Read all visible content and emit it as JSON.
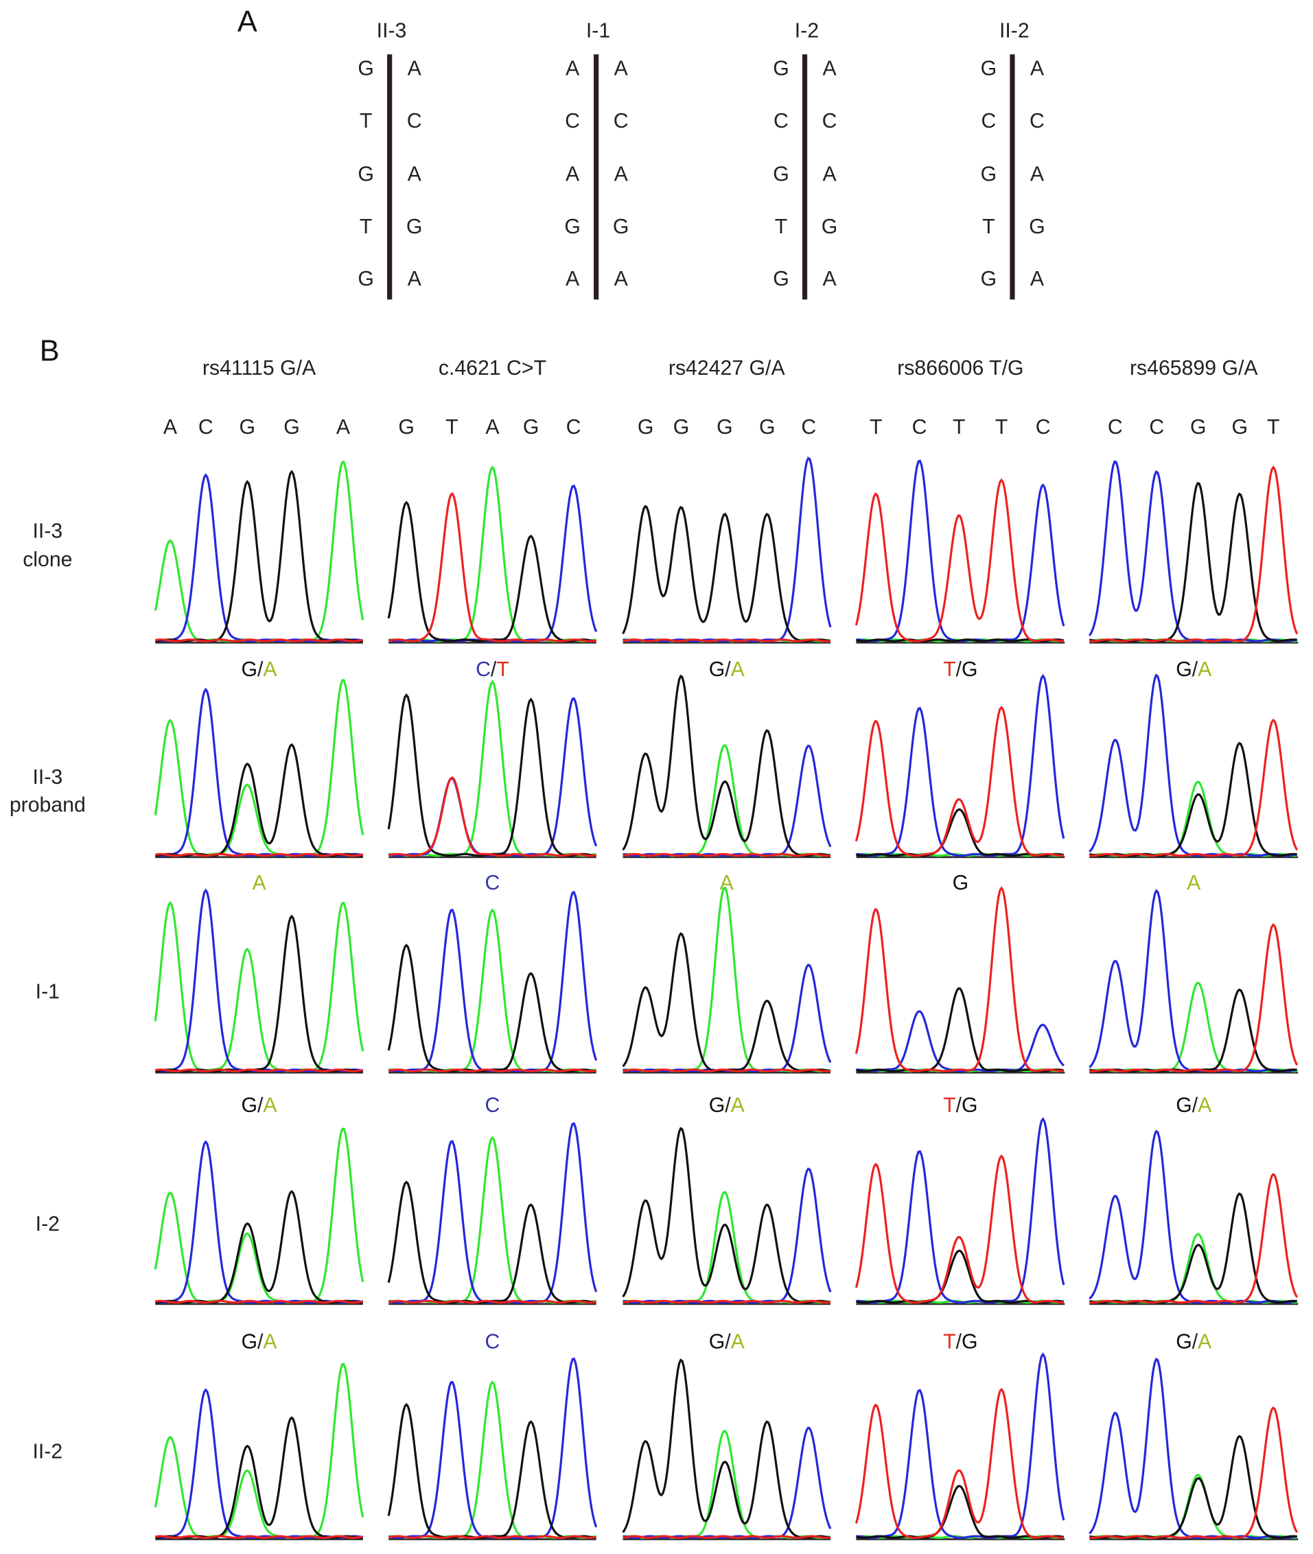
{
  "colors": {
    "A_trace": "#2ee82e",
    "A_text": "#9abb1e",
    "C": "#2626dd",
    "C_text": "#3434aa",
    "G": "#111111",
    "T": "#ee2020",
    "T_text": "#e03020",
    "mut_A": "#e0632a"
  },
  "section_a": {
    "label": "A",
    "individuals": [
      {
        "name": "II-3",
        "left": [
          "G",
          "T",
          "G",
          "T",
          "G"
        ],
        "right": [
          "A",
          "C",
          "A",
          "G",
          "A"
        ],
        "highlight_left": [
          1
        ]
      },
      {
        "name": "I-1",
        "left": [
          "A",
          "C",
          "A",
          "G",
          "A"
        ],
        "right": [
          "A",
          "C",
          "A",
          "G",
          "A"
        ],
        "highlight_left": []
      },
      {
        "name": "I-2",
        "left": [
          "G",
          "C",
          "G",
          "T",
          "G"
        ],
        "right": [
          "A",
          "C",
          "A",
          "G",
          "A"
        ],
        "highlight_left": []
      },
      {
        "name": "II-2",
        "left": [
          "G",
          "C",
          "G",
          "T",
          "G"
        ],
        "right": [
          "A",
          "C",
          "A",
          "G",
          "A"
        ],
        "highlight_left": []
      }
    ]
  },
  "chart_data": {
    "type": "chromatogram",
    "label": "B",
    "loci": [
      {
        "title": "rs41115 G/A",
        "bases": [
          "A",
          "C",
          "G",
          "G",
          "A"
        ]
      },
      {
        "title": "c.4621 C>T",
        "bases": [
          "G",
          "T",
          "A",
          "G",
          "C"
        ]
      },
      {
        "title": "rs42427 G/A",
        "bases": [
          "G",
          "G",
          "G",
          "G",
          "C"
        ]
      },
      {
        "title": "rs866006 T/G",
        "bases": [
          "T",
          "C",
          "T",
          "T",
          "C"
        ]
      },
      {
        "title": "rs465899 G/A",
        "bases": [
          "C",
          "C",
          "G",
          "G",
          "T"
        ]
      }
    ],
    "rows": [
      {
        "label": [
          "II-3",
          "clone"
        ],
        "genotypes": [
          "",
          "",
          "",
          "",
          ""
        ],
        "peaks": [
          [
            [
              0,
              "A",
              0.55
            ],
            [
              1,
              "C",
              0.9
            ],
            [
              2,
              "G",
              0.87
            ],
            [
              3,
              "G",
              0.92
            ],
            [
              4,
              "A",
              0.98
            ]
          ],
          [
            [
              0,
              "G",
              0.75
            ],
            [
              1,
              "T",
              0.8
            ],
            [
              2,
              "A",
              0.95
            ],
            [
              3,
              "G",
              0.57
            ],
            [
              4,
              "C",
              0.85
            ]
          ],
          [
            [
              0,
              "G",
              0.73
            ],
            [
              1,
              "G",
              0.73
            ],
            [
              2,
              "G",
              0.69
            ],
            [
              3,
              "G",
              0.69
            ],
            [
              4,
              "C",
              1.0
            ]
          ],
          [
            [
              0,
              "T",
              0.8
            ],
            [
              1,
              "C",
              0.98
            ],
            [
              2,
              "T",
              0.68
            ],
            [
              3,
              "T",
              0.88
            ],
            [
              4,
              "C",
              0.85
            ]
          ],
          [
            [
              0,
              "C",
              0.98
            ],
            [
              1,
              "C",
              0.92
            ],
            [
              2,
              "G",
              0.86
            ],
            [
              3,
              "G",
              0.8
            ],
            [
              4,
              "T",
              0.95
            ]
          ]
        ]
      },
      {
        "label": [
          "II-3",
          "proband"
        ],
        "genotypes": [
          "G/A",
          "C/T",
          "G/A",
          "T/G",
          "G/A"
        ],
        "peaks": [
          [
            [
              0,
              "A",
              0.74
            ],
            [
              1,
              "C",
              0.9
            ],
            [
              2,
              "G",
              0.5
            ],
            [
              2,
              "A",
              0.38
            ],
            [
              3,
              "G",
              0.6
            ],
            [
              4,
              "A",
              0.96
            ]
          ],
          [
            [
              0,
              "G",
              0.87
            ],
            [
              1,
              "C",
              0.42
            ],
            [
              1,
              "T",
              0.42
            ],
            [
              2,
              "A",
              0.95
            ],
            [
              3,
              "G",
              0.85
            ],
            [
              4,
              "C",
              0.86
            ]
          ],
          [
            [
              0,
              "G",
              0.55
            ],
            [
              1,
              "G",
              0.98
            ],
            [
              2,
              "A",
              0.6
            ],
            [
              2,
              "G",
              0.4
            ],
            [
              3,
              "G",
              0.68
            ],
            [
              4,
              "C",
              0.6
            ]
          ],
          [
            [
              0,
              "T",
              0.73
            ],
            [
              1,
              "C",
              0.8
            ],
            [
              2,
              "T",
              0.3
            ],
            [
              2,
              "G",
              0.25
            ],
            [
              3,
              "T",
              0.81
            ],
            [
              4,
              "C",
              0.98
            ]
          ],
          [
            [
              0,
              "C",
              0.63
            ],
            [
              1,
              "C",
              0.98
            ],
            [
              2,
              "A",
              0.4
            ],
            [
              2,
              "G",
              0.33
            ],
            [
              3,
              "G",
              0.61
            ],
            [
              4,
              "T",
              0.74
            ]
          ]
        ]
      },
      {
        "label": [
          "I-1"
        ],
        "genotypes": [
          "A",
          "C",
          "A",
          "G",
          "A"
        ],
        "peaks": [
          [
            [
              0,
              "A",
              0.92
            ],
            [
              1,
              "C",
              0.98
            ],
            [
              2,
              "A",
              0.66
            ],
            [
              3,
              "G",
              0.84
            ],
            [
              4,
              "A",
              0.92
            ]
          ],
          [
            [
              0,
              "G",
              0.68
            ],
            [
              1,
              "C",
              0.88
            ],
            [
              2,
              "A",
              0.88
            ],
            [
              3,
              "G",
              0.53
            ],
            [
              4,
              "C",
              0.98
            ]
          ],
          [
            [
              0,
              "G",
              0.45
            ],
            [
              1,
              "G",
              0.75
            ],
            [
              2,
              "A",
              1.0
            ],
            [
              3,
              "G",
              0.38
            ],
            [
              4,
              "C",
              0.58
            ]
          ],
          [
            [
              0,
              "T",
              0.88
            ],
            [
              1,
              "C",
              0.32
            ],
            [
              2,
              "G",
              0.45
            ],
            [
              3,
              "T",
              1.0
            ],
            [
              4,
              "C",
              0.25
            ]
          ],
          [
            [
              0,
              "C",
              0.6
            ],
            [
              1,
              "C",
              0.98
            ],
            [
              2,
              "A",
              0.48
            ],
            [
              3,
              "G",
              0.44
            ],
            [
              4,
              "T",
              0.8
            ]
          ]
        ]
      },
      {
        "label": [
          "I-2"
        ],
        "genotypes": [
          "G/A",
          "C",
          "G/A",
          "T/G",
          "G/A"
        ],
        "peaks": [
          [
            [
              0,
              "A",
              0.6
            ],
            [
              1,
              "C",
              0.87
            ],
            [
              2,
              "G",
              0.43
            ],
            [
              2,
              "A",
              0.37
            ],
            [
              3,
              "G",
              0.6
            ],
            [
              4,
              "A",
              0.95
            ]
          ],
          [
            [
              0,
              "G",
              0.65
            ],
            [
              1,
              "C",
              0.88
            ],
            [
              2,
              "A",
              0.9
            ],
            [
              3,
              "G",
              0.53
            ],
            [
              4,
              "C",
              0.98
            ]
          ],
          [
            [
              0,
              "G",
              0.55
            ],
            [
              1,
              "G",
              0.95
            ],
            [
              2,
              "A",
              0.6
            ],
            [
              2,
              "G",
              0.42
            ],
            [
              3,
              "G",
              0.53
            ],
            [
              4,
              "C",
              0.73
            ]
          ],
          [
            [
              0,
              "T",
              0.75
            ],
            [
              1,
              "C",
              0.82
            ],
            [
              2,
              "T",
              0.35
            ],
            [
              2,
              "G",
              0.28
            ],
            [
              3,
              "T",
              0.8
            ],
            [
              4,
              "C",
              1.0
            ]
          ],
          [
            [
              0,
              "C",
              0.58
            ],
            [
              1,
              "C",
              0.93
            ],
            [
              2,
              "A",
              0.37
            ],
            [
              2,
              "G",
              0.31
            ],
            [
              3,
              "G",
              0.59
            ],
            [
              4,
              "T",
              0.7
            ]
          ]
        ]
      },
      {
        "label": [
          "II-2"
        ],
        "genotypes": [
          "G/A",
          "C",
          "G/A",
          "T/G",
          "G/A"
        ],
        "peaks": [
          [
            [
              0,
              "A",
              0.55
            ],
            [
              1,
              "C",
              0.8
            ],
            [
              2,
              "G",
              0.5
            ],
            [
              2,
              "A",
              0.36
            ],
            [
              3,
              "G",
              0.65
            ],
            [
              4,
              "A",
              0.95
            ]
          ],
          [
            [
              0,
              "G",
              0.72
            ],
            [
              1,
              "C",
              0.85
            ],
            [
              2,
              "A",
              0.85
            ],
            [
              3,
              "G",
              0.63
            ],
            [
              4,
              "C",
              0.98
            ]
          ],
          [
            [
              0,
              "G",
              0.52
            ],
            [
              1,
              "G",
              0.97
            ],
            [
              2,
              "A",
              0.58
            ],
            [
              2,
              "G",
              0.41
            ],
            [
              3,
              "G",
              0.63
            ],
            [
              4,
              "C",
              0.6
            ]
          ],
          [
            [
              0,
              "T",
              0.72
            ],
            [
              1,
              "C",
              0.8
            ],
            [
              2,
              "T",
              0.36
            ],
            [
              2,
              "G",
              0.28
            ],
            [
              3,
              "T",
              0.81
            ],
            [
              4,
              "C",
              1.0
            ]
          ],
          [
            [
              0,
              "C",
              0.68
            ],
            [
              1,
              "C",
              0.97
            ],
            [
              2,
              "A",
              0.34
            ],
            [
              2,
              "G",
              0.32
            ],
            [
              3,
              "G",
              0.55
            ],
            [
              4,
              "T",
              0.71
            ]
          ]
        ]
      }
    ]
  }
}
